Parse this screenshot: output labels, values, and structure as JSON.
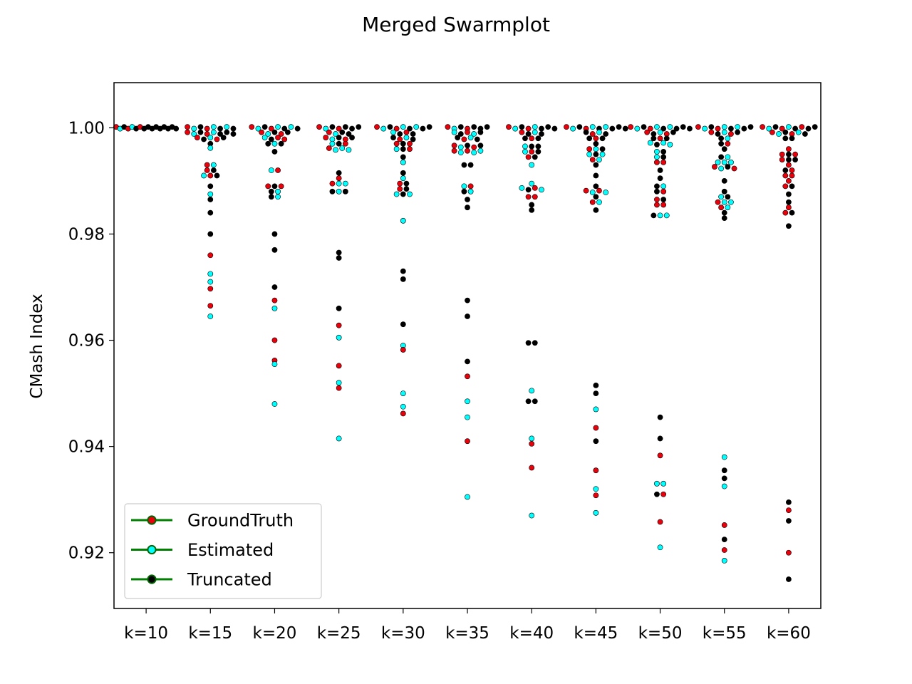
{
  "chart_data": {
    "type": "scatter",
    "subtype": "swarm",
    "title": "Merged Swarmplot",
    "ylabel": "CMash Index",
    "xlabel": "",
    "categories": [
      "k=10",
      "k=15",
      "k=20",
      "k=25",
      "k=30",
      "k=35",
      "k=40",
      "k=45",
      "k=50",
      "k=55",
      "k=60"
    ],
    "ylim": [
      0.9095,
      1.0085
    ],
    "yticks": [
      0.92,
      0.94,
      0.96,
      0.98,
      1.0
    ],
    "ytick_labels": [
      "0.92",
      "0.94",
      "0.96",
      "0.98",
      "1.00"
    ],
    "grid": false,
    "legend_position": "lower-left",
    "series": [
      {
        "name": "GroundTruth",
        "color": "#e8000b",
        "values": [
          [
            1.0,
            1.0,
            1.0
          ],
          [
            1.0,
            0.9995,
            0.999,
            0.9985,
            0.998,
            0.9976,
            0.993,
            0.992,
            0.9905,
            0.976,
            0.9697,
            0.9665
          ],
          [
            1.0,
            0.9995,
            0.999,
            0.9985,
            0.9975,
            0.9975,
            0.9915,
            0.989,
            0.9885,
            0.9675,
            0.96,
            0.9562
          ],
          [
            1.0,
            0.9995,
            0.999,
            0.998,
            0.9975,
            0.9965,
            0.996,
            0.9905,
            0.9895,
            0.9628,
            0.9552,
            0.951
          ],
          [
            1.0,
            0.9995,
            0.9985,
            0.9975,
            0.997,
            0.9965,
            0.9955,
            0.9895,
            0.9885,
            0.9582,
            0.9462
          ],
          [
            1.0,
            0.9995,
            0.9985,
            0.9975,
            0.9965,
            0.996,
            0.9955,
            0.995,
            0.9885,
            0.9532,
            0.941
          ],
          [
            1.0,
            0.9995,
            0.999,
            0.9975,
            0.995,
            0.9945,
            0.988,
            0.987,
            0.9865,
            0.9405,
            0.936
          ],
          [
            1.0,
            0.9995,
            0.9985,
            0.9975,
            0.996,
            0.994,
            0.988,
            0.9875,
            0.986,
            0.9435,
            0.9355,
            0.9308
          ],
          [
            1.0,
            0.9995,
            0.999,
            0.9985,
            0.9975,
            0.9935,
            0.993,
            0.9875,
            0.9865,
            0.9855,
            0.985,
            0.9383,
            0.9305,
            0.9258
          ],
          [
            1.0,
            0.9995,
            0.999,
            0.9985,
            0.9965,
            0.9925,
            0.992,
            0.986,
            0.985,
            0.9252,
            0.9205
          ],
          [
            1.0,
            0.9998,
            0.9995,
            0.999,
            0.9985,
            0.996,
            0.995,
            0.9945,
            0.994,
            0.993,
            0.9915,
            0.991,
            0.9905,
            0.99,
            0.989,
            0.985,
            0.984,
            0.928,
            0.92
          ]
        ]
      },
      {
        "name": "Estimated",
        "color": "#00ffff",
        "values": [
          [
            1.0,
            1.0
          ],
          [
            1.0,
            1.0,
            0.9995,
            0.999,
            0.9985,
            0.9975,
            0.9962,
            0.993,
            0.991,
            0.9875,
            0.9725,
            0.971,
            0.9645
          ],
          [
            1.0,
            1.0,
            0.9995,
            0.999,
            0.998,
            0.9965,
            0.992,
            0.9875,
            0.9865,
            0.966,
            0.9555,
            0.948
          ],
          [
            1.0,
            0.999,
            0.998,
            0.997,
            0.996,
            0.996,
            0.9955,
            0.9895,
            0.989,
            0.9875,
            0.9605,
            0.952,
            0.9415
          ],
          [
            1.0,
            1.0,
            0.9995,
            0.999,
            0.9975,
            0.996,
            0.9935,
            0.9905,
            0.9875,
            0.987,
            0.9825,
            0.959,
            0.95,
            0.9475
          ],
          [
            1.0,
            0.999,
            0.9985,
            0.9975,
            0.9965,
            0.9955,
            0.9955,
            0.995,
            0.989,
            0.9875,
            0.9485,
            0.9455,
            0.9305
          ],
          [
            1.0,
            0.9995,
            0.9985,
            0.9965,
            0.9955,
            0.993,
            0.9895,
            0.9885,
            0.988,
            0.9505,
            0.9415,
            0.927
          ],
          [
            1.0,
            1.0,
            0.9995,
            0.9985,
            0.996,
            0.995,
            0.9945,
            0.994,
            0.988,
            0.9875,
            0.986,
            0.947,
            0.932,
            0.9275
          ],
          [
            1.0,
            1.0,
            0.9995,
            0.9985,
            0.997,
            0.9965,
            0.9965,
            0.9955,
            0.9945,
            0.9885,
            0.983,
            0.983,
            0.933,
            0.933,
            0.921
          ],
          [
            1.0,
            1.0,
            0.9995,
            0.9985,
            0.9975,
            0.994,
            0.9935,
            0.993,
            0.993,
            0.992,
            0.987,
            0.986,
            0.9855,
            0.9845,
            0.938,
            0.9325,
            0.9185
          ],
          [
            1.0,
            0.9995,
            0.999,
            0.9985
          ]
        ]
      },
      {
        "name": "Truncated",
        "color": "#000000",
        "values": [
          [
            1.0,
            1.0,
            1.0,
            1.0,
            1.0,
            1.0,
            1.0,
            1.0,
            1.0,
            1.0,
            1.0
          ],
          [
            1.0,
            1.0,
            0.9995,
            0.999,
            0.9985,
            0.9985,
            0.9985,
            0.998,
            0.9975,
            0.997,
            0.992,
            0.9905,
            0.989,
            0.9865,
            0.984,
            0.98
          ],
          [
            1.0,
            1.0,
            1.0,
            0.999,
            0.9985,
            0.998,
            0.997,
            0.9965,
            0.9955,
            0.9885,
            0.988,
            0.987,
            0.98,
            0.977,
            0.97
          ],
          [
            1.0,
            1.0,
            1.0,
            1.0,
            0.999,
            0.9985,
            0.998,
            0.9975,
            0.997,
            0.9915,
            0.988,
            0.988,
            0.9765,
            0.9755,
            0.966
          ],
          [
            1.0,
            1.0,
            1.0,
            0.9995,
            0.999,
            0.9985,
            0.998,
            0.9975,
            0.997,
            0.996,
            0.9945,
            0.9915,
            0.9895,
            0.988,
            0.9875,
            0.973,
            0.9715,
            0.963
          ],
          [
            1.0,
            1.0,
            1.0,
            0.9995,
            0.999,
            0.9985,
            0.998,
            0.9975,
            0.9965,
            0.996,
            0.993,
            0.993,
            0.988,
            0.9865,
            0.985,
            0.9675,
            0.9645,
            0.956
          ],
          [
            1.0,
            1.0,
            1.0,
            0.9995,
            0.999,
            0.9985,
            0.998,
            0.9975,
            0.9965,
            0.996,
            0.995,
            0.994,
            0.9885,
            0.9855,
            0.9845,
            0.9595,
            0.959,
            0.9485,
            0.9482
          ],
          [
            1.0,
            1.0,
            1.0,
            1.0,
            0.9995,
            0.999,
            0.9985,
            0.998,
            0.9975,
            0.997,
            0.996,
            0.995,
            0.993,
            0.991,
            0.989,
            0.987,
            0.9845,
            0.9515,
            0.95,
            0.941
          ],
          [
            1.0,
            1.0,
            1.0,
            1.0,
            0.9995,
            0.999,
            0.9985,
            0.998,
            0.9975,
            0.9965,
            0.995,
            0.994,
            0.992,
            0.9905,
            0.989,
            0.988,
            0.986,
            0.9835,
            0.9455,
            0.9415,
            0.931
          ],
          [
            1.0,
            1.0,
            1.0,
            0.9995,
            0.999,
            0.9985,
            0.998,
            0.997,
            0.996,
            0.9945,
            0.992,
            0.99,
            0.988,
            0.9865,
            0.984,
            0.983,
            0.9355,
            0.934,
            0.9225
          ],
          [
            1.0,
            1.0,
            1.0,
            0.9995,
            0.999,
            0.9985,
            0.998,
            0.9975,
            0.995,
            0.994,
            0.9935,
            0.992,
            0.9885,
            0.9875,
            0.986,
            0.9835,
            0.9815,
            0.9295,
            0.926,
            0.915
          ]
        ]
      }
    ]
  }
}
